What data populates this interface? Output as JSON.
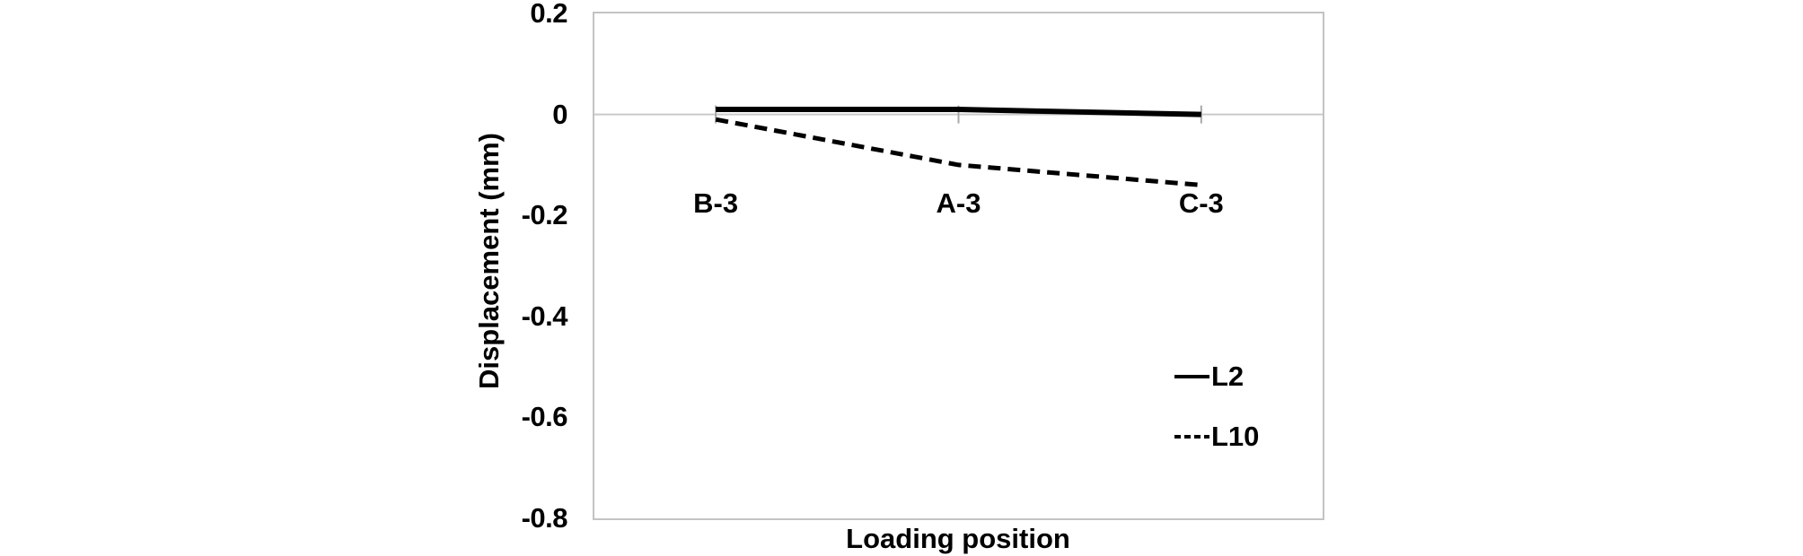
{
  "chart_data": {
    "type": "line",
    "title": "",
    "xlabel": "Loading position",
    "ylabel": "Displacement (mm)",
    "categories": [
      "B-3",
      "A-3",
      "C-3"
    ],
    "series": [
      {
        "name": "L2",
        "style": "solid",
        "values": [
          0.01,
          0.01,
          0.0
        ]
      },
      {
        "name": "L10",
        "style": "dashed",
        "values": [
          -0.01,
          -0.1,
          -0.14
        ]
      }
    ],
    "ylim": [
      -0.8,
      0.2
    ],
    "yticks": [
      0.2,
      0,
      -0.2,
      -0.4,
      -0.6,
      -0.8
    ],
    "ytick_labels": [
      "0.2",
      "0",
      "-0.2",
      "-0.4",
      "-0.6",
      "-0.8"
    ],
    "grid": "zero-line-only",
    "legend_position": "inside-right"
  },
  "colors": {
    "series_line": "#000000",
    "plot_border": "#c3c3c3",
    "zero_gridline": "#c9c9c9",
    "category_tick": "#a8a8a8",
    "text": "#000000",
    "background": "#ffffff"
  }
}
